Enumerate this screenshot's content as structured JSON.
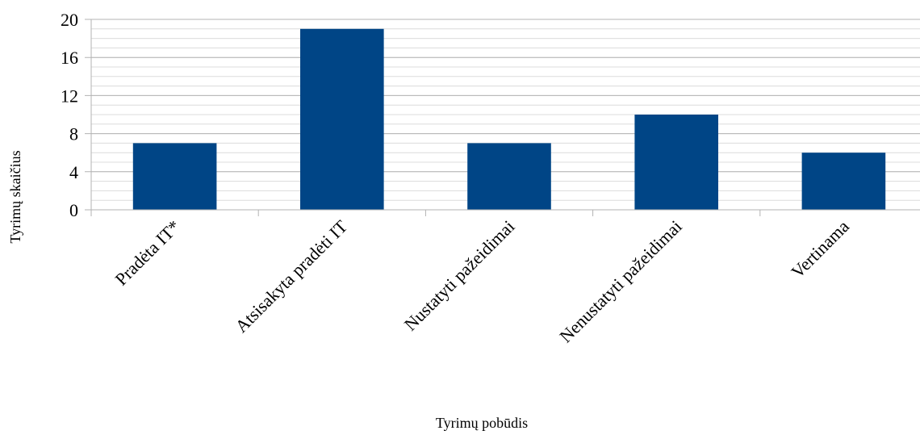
{
  "chart_data": {
    "type": "bar",
    "title": "",
    "xlabel": "Tyrimų pobūdis",
    "ylabel": "Tyrimų skaičius",
    "categories": [
      "Pradėta IT*",
      "Atsisakyta pradėti IT",
      "Nustatyti pažeidimai",
      "Nenustatyti pažeidimai",
      "Vertinama"
    ],
    "values": [
      7,
      19,
      7,
      10,
      6
    ],
    "ylim": [
      0,
      20
    ],
    "yticks": [
      0,
      4,
      8,
      12,
      16,
      20
    ],
    "minor_gridlines": true,
    "grid": true,
    "legend": "none",
    "bar_color": "#004586"
  }
}
